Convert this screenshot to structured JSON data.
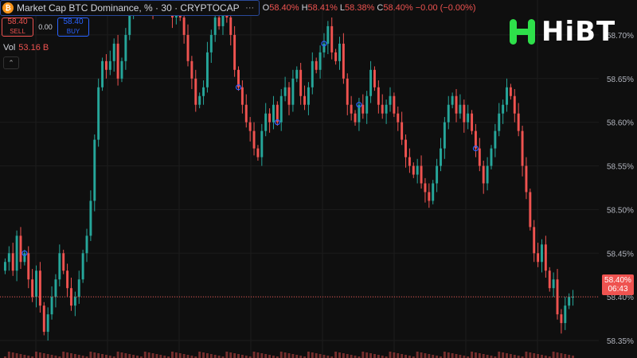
{
  "header": {
    "icon": "bitcoin-icon",
    "icon_glyph": "₿",
    "symbol": "Market Cap BTC Dominance, % · 30 · CRYPTOCAP",
    "more_glyph": "···",
    "ohlc": [
      {
        "key": "O",
        "value": "58.40%"
      },
      {
        "key": "H",
        "value": "58.41%"
      },
      {
        "key": "L",
        "value": "58.38%"
      },
      {
        "key": "C",
        "value": "58.40%"
      }
    ],
    "change": "−0.00 (−0.00%)"
  },
  "trade": {
    "sell_price": "58.40",
    "sell_label": "SELL",
    "spread": "0.00",
    "buy_price": "58.40",
    "buy_label": "BUY"
  },
  "volume": {
    "label": "Vol",
    "value": "53.16 B"
  },
  "collapse_glyph": "⌃",
  "logo": {
    "text": "HiBT",
    "color": "#2ee04a"
  },
  "price_tag": {
    "price": "58.40%",
    "countdown": "06:43"
  },
  "colors": {
    "up": "#26a69a",
    "down": "#ef5350",
    "background": "#0f0f0f",
    "grid": "#1c1c1c",
    "marker": "#2962ff"
  },
  "chart_data": {
    "type": "candlestick",
    "ylim": [
      58.33,
      58.74
    ],
    "yticks": [
      "58.35%",
      "58.40%",
      "58.45%",
      "58.50%",
      "58.55%",
      "58.60%",
      "58.65%",
      "58.70%"
    ],
    "ytick_values": [
      58.35,
      58.4,
      58.45,
      58.5,
      58.55,
      58.6,
      58.65,
      58.7
    ],
    "last_price": 58.4,
    "close": [
      58.44,
      58.45,
      58.43,
      58.47,
      58.44,
      58.45,
      58.42,
      58.4,
      58.43,
      58.39,
      58.36,
      58.38,
      58.4,
      58.42,
      58.45,
      58.43,
      58.41,
      58.39,
      58.4,
      58.42,
      58.45,
      58.47,
      58.51,
      58.58,
      58.64,
      58.67,
      58.66,
      58.67,
      58.69,
      58.65,
      58.67,
      58.7,
      58.73,
      58.74,
      58.75,
      58.74,
      58.74,
      58.76,
      58.73,
      58.74,
      58.74,
      58.75,
      58.73,
      58.72,
      58.76,
      58.72,
      58.7,
      58.67,
      58.65,
      58.62,
      58.63,
      58.64,
      58.68,
      58.7,
      58.72,
      58.71,
      58.74,
      58.72,
      58.7,
      58.66,
      58.64,
      58.62,
      58.6,
      58.59,
      58.57,
      58.56,
      58.59,
      58.61,
      58.6,
      58.62,
      58.6,
      58.63,
      58.64,
      58.62,
      58.65,
      58.66,
      58.63,
      58.62,
      58.64,
      58.67,
      58.66,
      58.68,
      58.69,
      58.71,
      58.68,
      58.67,
      58.69,
      58.65,
      58.62,
      58.61,
      58.6,
      58.62,
      58.61,
      58.63,
      58.66,
      58.64,
      58.62,
      58.61,
      58.62,
      58.63,
      58.61,
      58.6,
      58.58,
      58.56,
      58.55,
      58.54,
      58.55,
      58.53,
      58.52,
      58.51,
      58.53,
      58.55,
      58.57,
      58.6,
      58.62,
      58.63,
      58.61,
      58.62,
      58.6,
      58.61,
      58.59,
      58.57,
      58.55,
      58.53,
      58.55,
      58.57,
      58.59,
      58.61,
      58.62,
      58.64,
      58.63,
      58.61,
      58.59,
      58.55,
      58.52,
      58.48,
      58.45,
      58.44,
      58.46,
      58.43,
      58.41,
      58.42,
      58.38,
      58.37,
      58.39,
      58.4,
      58.4
    ],
    "volume_note": "small red volume bars along bottom",
    "markers": [
      5,
      42,
      60,
      70,
      82,
      91,
      121
    ]
  }
}
